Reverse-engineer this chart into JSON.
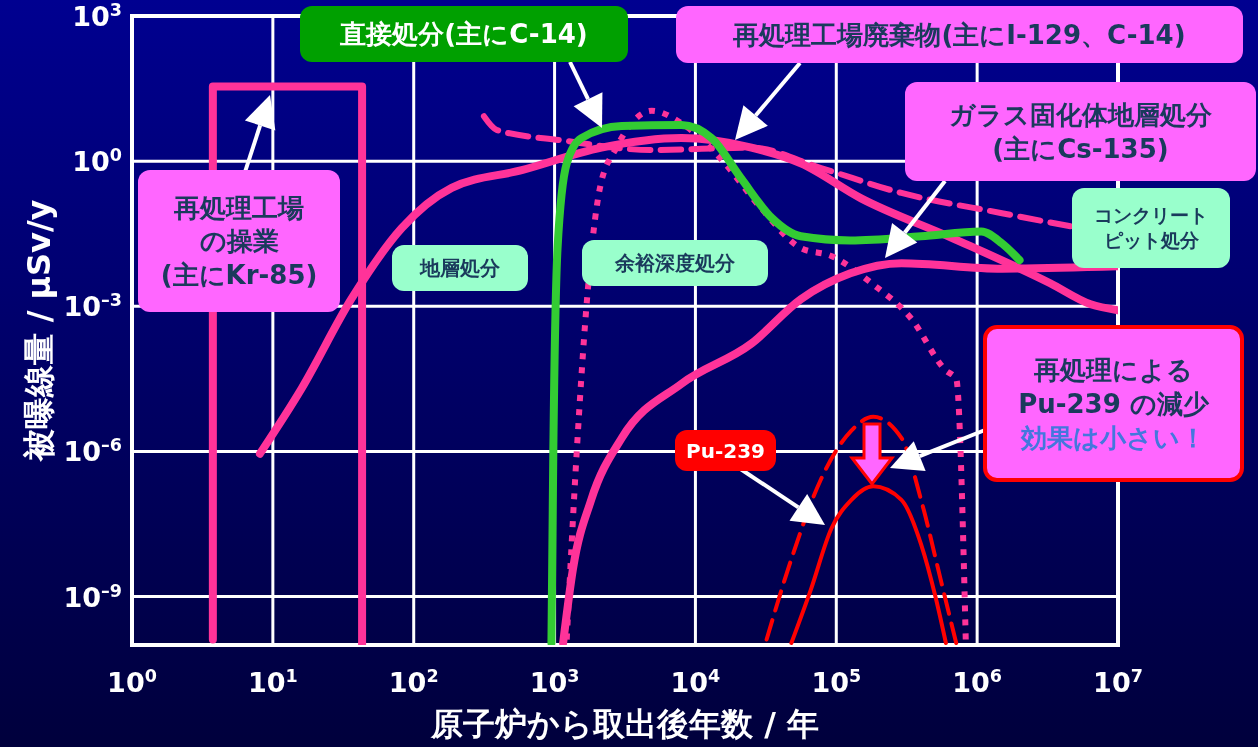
{
  "chart_data": {
    "type": "line",
    "log": "xy",
    "grid": true,
    "marker": "none",
    "xlabel": "原子炉から取出後年数 / 年",
    "ylabel": "被曝線量 / μSv/y",
    "xlim": [
      1,
      10000000
    ],
    "ylim": [
      1e-10,
      1000
    ],
    "xticks": [
      {
        "value": 1,
        "label": "10$^{0}$"
      },
      {
        "value": 10,
        "label": "10$^{1}$"
      },
      {
        "value": 100,
        "label": "10$^{2}$"
      },
      {
        "value": 1000,
        "label": "10$^{3}$"
      },
      {
        "value": 10000,
        "label": "10$^{4}$"
      },
      {
        "value": 100000,
        "label": "10$^{5}$"
      },
      {
        "value": 1000000,
        "label": "10$^{6}$"
      },
      {
        "value": 10000000,
        "label": "10$^{7}$"
      }
    ],
    "yticks": [
      {
        "value": 1e-09,
        "label": "10$^{–9}$"
      },
      {
        "value": 1e-06,
        "label": "10$^{–6}$"
      },
      {
        "value": 0.001,
        "label": "10$^{–3}$"
      },
      {
        "value": 1,
        "label": "10$^{0}$"
      },
      {
        "value": 1000,
        "label": "10$^{3}$"
      }
    ],
    "series": [
      {
        "color": "#ff3399",
        "line_style": "solid",
        "x": [
          3.75,
          3.75,
          43,
          43
        ],
        "values": [
          1.3e-10,
          35,
          35,
          1e-10
        ]
      },
      {
        "color": "#ff3399",
        "line_style": "solid",
        "x": [
          8.1,
          16,
          36,
          82,
          186,
          585,
          2150,
          7950,
          25000,
          56000,
          150000,
          660000,
          3300000,
          6400000,
          10000000
        ],
        "values": [
          9e-07,
          2e-05,
          0.0014,
          0.041,
          0.28,
          0.65,
          1.9,
          3,
          1.9,
          0.9,
          0.17,
          0.026,
          0.003,
          0.0011,
          0.00083
        ]
      },
      {
        "color": "#ff3399",
        "line_style": "dashed",
        "x": [
          315,
          390,
          1120,
          4900,
          25000,
          78000,
          290000,
          1500000,
          4600000
        ],
        "values": [
          8.5,
          4.4,
          2.7,
          1.7,
          1.9,
          0.72,
          0.22,
          0.084,
          0.045
        ]
      },
      {
        "color": "#ff3399",
        "line_style": "dotted",
        "x": [
          1220,
          1440,
          1700,
          2100,
          2750,
          4900,
          7950,
          15000,
          29000,
          56000,
          92000,
          178000,
          340000,
          600000,
          710000,
          830000
        ],
        "values": [
          1.3e-10,
          1.1e-06,
          0.0014,
          0.28,
          1.9,
          11,
          6.1,
          1.15,
          0.11,
          0.016,
          0.011,
          0.003,
          0.00056,
          4.7e-05,
          3.2e-05,
          1.3e-10
        ]
      },
      {
        "color": "#33cc33",
        "line_style": "solid",
        "x": [
          950,
          980,
          1050,
          1220,
          1550,
          3000,
          7950,
          13000,
          21000,
          35000,
          56000,
          126000,
          400000,
          1070000,
          1500000,
          2000000
        ],
        "values": [
          1.1e-10,
          1.1e-06,
          0.016,
          0.9,
          3,
          5.3,
          5.6,
          3,
          0.45,
          0.066,
          0.028,
          0.023,
          0.028,
          0.035,
          0.02,
          0.009
        ]
      },
      {
        "color": "#ff3399",
        "line_style": "solid",
        "x": [
          1150,
          1350,
          1820,
          3000,
          7950,
          25000,
          56000,
          126000,
          290000,
          1500000,
          10000000
        ],
        "values": [
          1.1e-10,
          3.7e-09,
          1e-07,
          1.9e-06,
          2.5e-05,
          0.00017,
          0.0014,
          0.0048,
          0.0078,
          0.006,
          0.0067
        ]
      },
      {
        "color": "#ff0000",
        "line_style": "solid",
        "x": [
          48000,
          66000,
          92000,
          128000,
          183000,
          290000,
          400000,
          510000,
          600000
        ],
        "values": [
          1.1e-10,
          1.4e-09,
          2.5e-08,
          1e-07,
          1.9e-07,
          1e-07,
          1.2e-08,
          9e-10,
          1.1e-10
        ]
      },
      {
        "color": "#ff0000",
        "line_style": "dashed",
        "x": [
          32000,
          48000,
          78000,
          128000,
          183000,
          290000,
          400000,
          550000,
          710000
        ],
        "values": [
          1.3e-10,
          6e-09,
          2.7e-07,
          2.7e-06,
          5.2e-06,
          1.9e-06,
          1e-07,
          2.3e-09,
          1.1e-10
        ]
      }
    ],
    "annotations": [
      "直接処分(主にC-14)",
      "再処理工場廃棄物(主にI-129、C-14)",
      "ガラス固化体地層処分(主にCs-135)",
      "コンクリートピット処分",
      "再処理工場の操業(主にKr-85)",
      "地層処分",
      "余裕深度処分",
      "Pu-239",
      "再処理によるPu-239 の減少効果は小さい！"
    ]
  }
}
